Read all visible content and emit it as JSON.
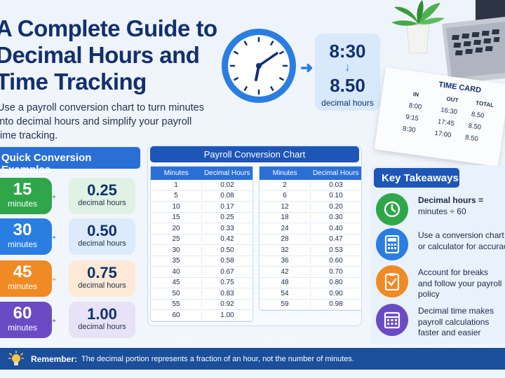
{
  "title_lines": [
    "A Complete Guide to",
    "Decimal Hours and",
    "Time Tracking"
  ],
  "subtitle_lines": [
    "Use a payroll conversion chart to turn minutes",
    "into decimal hours and simplify your payroll",
    "time tracking."
  ],
  "hero": {
    "time": "8:30",
    "arrow": "↓",
    "decimal": "8.50",
    "decimal_label": "decimal hours"
  },
  "time_card": {
    "title": "TIME CARD",
    "headers": [
      "IN",
      "OUT",
      "TOTAL"
    ],
    "rows": [
      [
        "8:00",
        "16:30",
        "8.50"
      ],
      [
        "9:15",
        "17:45",
        "8.50"
      ],
      [
        "8:30",
        "17:00",
        "8.50"
      ]
    ]
  },
  "quick": {
    "header": "Quick Conversion Examples",
    "items": [
      {
        "minutes": "15",
        "minutes_label": "minutes",
        "decimal": "0.25",
        "decimal_label": "decimal hours",
        "color": "#2fa64a",
        "bg": "#e0f2e3"
      },
      {
        "minutes": "30",
        "minutes_label": "minutes",
        "decimal": "0.50",
        "decimal_label": "decimal hours",
        "color": "#2a7de1",
        "bg": "#dcebfb"
      },
      {
        "minutes": "45",
        "minutes_label": "minutes",
        "decimal": "0.75",
        "decimal_label": "decimal hours",
        "color": "#f08a24",
        "bg": "#fde9d6"
      },
      {
        "minutes": "60",
        "minutes_label": "minutes",
        "decimal": "1.00",
        "decimal_label": "decimal hours",
        "color": "#6a4bc4",
        "bg": "#e7e2f6"
      }
    ]
  },
  "payroll": {
    "header": "Payroll Conversion Chart",
    "col_minutes": "Minutes",
    "col_decimal": "Decimal Hours",
    "left": [
      [
        "1",
        "0.02"
      ],
      [
        "5",
        "0.08"
      ],
      [
        "10",
        "0.17"
      ],
      [
        "15",
        "0.25"
      ],
      [
        "20",
        "0.33"
      ],
      [
        "25",
        "0.42"
      ],
      [
        "30",
        "0.50"
      ],
      [
        "35",
        "0.58"
      ],
      [
        "40",
        "0.67"
      ],
      [
        "45",
        "0.75"
      ],
      [
        "50",
        "0.83"
      ],
      [
        "55",
        "0.92"
      ],
      [
        "60",
        "1.00"
      ]
    ],
    "right": [
      [
        "2",
        "0.03"
      ],
      [
        "6",
        "0.10"
      ],
      [
        "12",
        "0.20"
      ],
      [
        "18",
        "0.30"
      ],
      [
        "24",
        "0.40"
      ],
      [
        "28",
        "0.47"
      ],
      [
        "32",
        "0.53"
      ],
      [
        "36",
        "0.60"
      ],
      [
        "42",
        "0.70"
      ],
      [
        "48",
        "0.80"
      ],
      [
        "54",
        "0.90"
      ],
      [
        "59",
        "0.98"
      ]
    ]
  },
  "takeaways": {
    "header": "Key Takeaways",
    "items": [
      {
        "icon": "clock-icon",
        "color": "#2fa64a",
        "lines": [
          "Decimal hours =",
          "minutes ÷ 60"
        ]
      },
      {
        "icon": "calculator-icon",
        "color": "#2a7de1",
        "lines": [
          "Use a conversion chart",
          "or calculator for accuracy"
        ]
      },
      {
        "icon": "clipboard-check-icon",
        "color": "#f08a24",
        "lines": [
          "Account for breaks",
          "and follow your payroll",
          "policy"
        ]
      },
      {
        "icon": "calendar-icon",
        "color": "#6a4bc4",
        "lines": [
          "Decimal time makes",
          "payroll calculations",
          "faster and easier"
        ]
      }
    ]
  },
  "remember": {
    "label": "Remember:",
    "text": "The decimal portion represents a fraction of an hour, not the number of minutes."
  }
}
